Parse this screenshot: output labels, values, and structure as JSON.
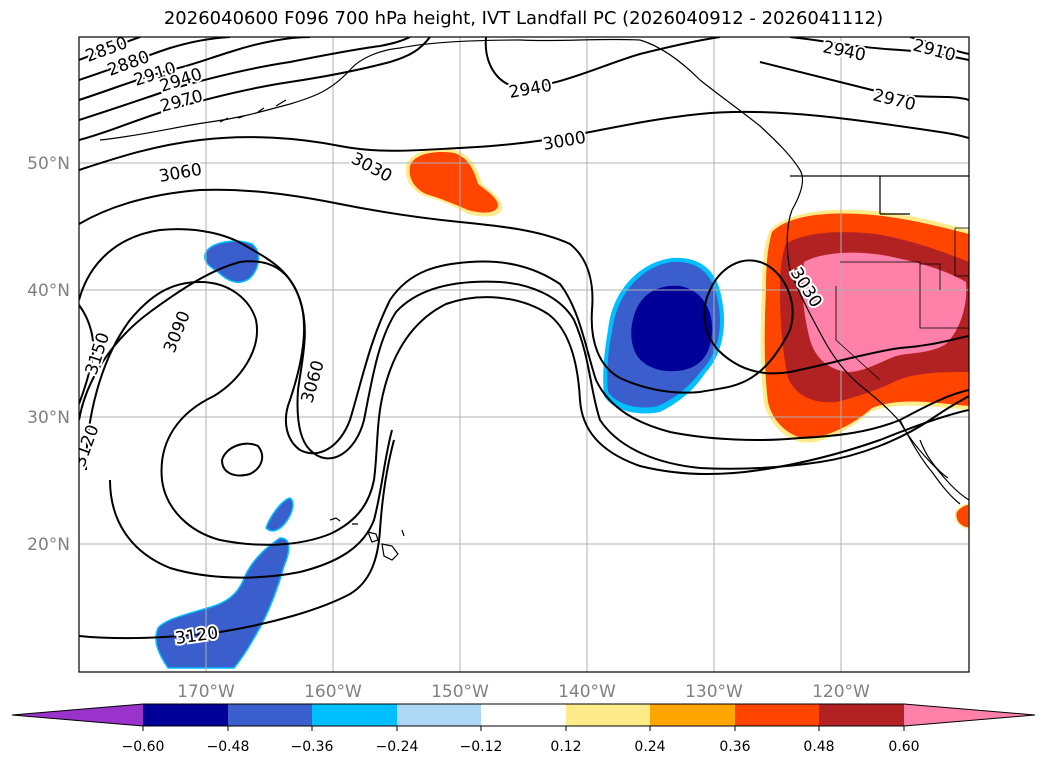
{
  "title": "2026040600 F096 700 hPa height, IVT Landfall PC (2026040912 - 2026041112)",
  "axes": {
    "lat_labels": [
      "50°N",
      "40°N",
      "30°N",
      "20°N"
    ],
    "lon_labels": [
      "170°W",
      "160°W",
      "150°W",
      "140°W",
      "130°W",
      "120°W"
    ]
  },
  "contour_labels": [
    "2850",
    "2880",
    "2910",
    "2940",
    "2970",
    "3060",
    "3030",
    "2940",
    "3000",
    "2940",
    "2910",
    "2970",
    "3090",
    "3150",
    "3120",
    "3060",
    "3030",
    "3120"
  ],
  "colorbar": {
    "ticks": [
      "−0.60",
      "−0.48",
      "−0.36",
      "−0.24",
      "−0.12",
      "0.12",
      "0.24",
      "0.36",
      "0.48",
      "0.60"
    ],
    "colors": [
      "#9933cc",
      "#000099",
      "#3a5fcd",
      "#00bfff",
      "#add8f5",
      "#ffffff",
      "#ffeb8a",
      "#ffa500",
      "#ff4500",
      "#b22222",
      "#ff80a8"
    ]
  }
}
